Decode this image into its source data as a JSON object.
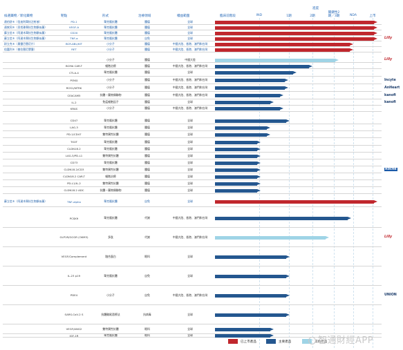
{
  "header": {
    "col_name": "候選藥物／新化藥物",
    "col_target": "靶點",
    "col_modality": "形式",
    "col_area": "治療領域",
    "col_territory": "權益範圍",
    "col_stage": "臨床前階段",
    "col_status": "進度",
    "stages": [
      "IND",
      "1期",
      "2期",
      "關鍵性2期／3期",
      "NDA",
      "上市"
    ]
  },
  "legend": {
    "commercial": "已上市產品",
    "key_program": "主要產品",
    "other_program": "其他產品"
  },
  "colors": {
    "red": "#c0272d",
    "navy": "#24578f",
    "light": "#9fd4e6",
    "accent": "#2a6bb8"
  },
  "watermark": "智通財經APP",
  "rows": [
    {
      "name": "達伯舒®（信迪利單抗注射液）",
      "target": "PD-1",
      "modality": "單克隆抗體",
      "area": "腫瘤",
      "territory": "全球",
      "partner": true,
      "bar": "red",
      "progress": 1.0,
      "note": "",
      "logo": ""
    },
    {
      "name": "達攸同®（貝伐珠單抗生物類似藥）",
      "target": "VEGF-A",
      "modality": "單克隆抗體",
      "area": "腫瘤",
      "territory": "全球",
      "partner": true,
      "bar": "red",
      "progress": 1.0,
      "note": "",
      "logo": ""
    },
    {
      "name": "蘇立信®（阿達木單抗生物類似藥）",
      "target": "CD20",
      "modality": "單克隆抗體",
      "area": "腫瘤",
      "territory": "全球",
      "partner": true,
      "bar": "red",
      "progress": 1.0,
      "note": "",
      "logo": ""
    },
    {
      "name": "蘇立信®（阿達木單抗生物類似藥）",
      "target": "TNF-α",
      "modality": "單克隆抗體",
      "area": "自免",
      "territory": "全球",
      "partner": true,
      "bar": "red",
      "progress": 1.0,
      "note": "",
      "logo": "Lilly"
    },
    {
      "name": "耐立克®（奧雷巴替尼片）",
      "target": "BCR-ABL/KIT",
      "modality": "小分子",
      "area": "腫瘤",
      "territory": "中國大陸、香港、澳門和台灣",
      "partner": true,
      "bar": "red",
      "progress": 0.85,
      "note": "",
      "logo": ""
    },
    {
      "name": "倍嘉利®（普拉替尼膠囊）",
      "target": "RET",
      "modality": "小分子",
      "area": "腫瘤",
      "territory": "中國大陸、香港、澳門和台灣",
      "partner": true,
      "bar": "red",
      "progress": 0.85,
      "note": "",
      "logo": ""
    },
    {
      "name": "",
      "target": "",
      "modality": "小分子",
      "area": "腫瘤",
      "territory": "中國大陸",
      "partner": false,
      "bar": "light",
      "progress": 0.76,
      "note": "",
      "logo": "Lilly"
    },
    {
      "name": "",
      "target": "BCMA CAR-T",
      "modality": "細胞治療",
      "area": "腫瘤",
      "territory": "中國大陸、香港、澳門和台灣",
      "partner": false,
      "bar": "navy",
      "progress": 0.6,
      "note": "",
      "logo": ""
    },
    {
      "name": "",
      "target": "CTLA-4",
      "modality": "單克隆抗體",
      "area": "腫瘤",
      "territory": "全球",
      "partner": false,
      "bar": "navy",
      "progress": 0.5,
      "note": "",
      "logo": ""
    },
    {
      "name": "",
      "target": "PI3Kδ",
      "modality": "小分子",
      "area": "腫瘤",
      "territory": "中國大陸、香港、澳門和台灣",
      "partner": false,
      "bar": "navy",
      "progress": 0.45,
      "note": "",
      "logo": "Incyte"
    },
    {
      "name": "",
      "target": "ROS1/NTRK",
      "modality": "小分子",
      "area": "腫瘤",
      "territory": "中國大陸、香港、澳門和台灣",
      "partner": false,
      "bar": "navy",
      "progress": 0.45,
      "note": "",
      "logo": "AnHeart"
    },
    {
      "name": "",
      "target": "CEACAM5",
      "modality": "抗體－藥物偶聯物",
      "area": "腫瘤",
      "territory": "中國大陸、香港、澳門和台灣",
      "partner": false,
      "bar": "navy",
      "progress": 0.42,
      "note": "",
      "logo": "kanofi"
    },
    {
      "name": "",
      "target": "IL-2",
      "modality": "免疫細胞因子",
      "area": "腫瘤",
      "territory": "全球",
      "partner": false,
      "bar": "navy",
      "progress": 0.36,
      "note": "",
      "logo": "kanofi"
    },
    {
      "name": "",
      "target": "KRAS",
      "modality": "小分子",
      "area": "腫瘤",
      "territory": "中國大陸、香港、澳門和台灣",
      "partner": false,
      "bar": "navy",
      "progress": 0.42,
      "note": "",
      "logo": ""
    },
    {
      "name": "",
      "target": "CD47",
      "modality": "單克隆抗體",
      "area": "腫瘤",
      "territory": "全球",
      "partner": false,
      "bar": "navy",
      "progress": 0.46,
      "note": "",
      "logo": ""
    },
    {
      "name": "",
      "target": "LAG-3",
      "modality": "單克隆抗體",
      "area": "腫瘤",
      "territory": "全球",
      "partner": false,
      "bar": "navy",
      "progress": 0.34,
      "note": "",
      "logo": ""
    },
    {
      "name": "",
      "target": "PD-1/CD47",
      "modality": "雙特異性抗體",
      "area": "腫瘤",
      "territory": "全球",
      "partner": false,
      "bar": "navy",
      "progress": 0.34,
      "note": "",
      "logo": ""
    },
    {
      "name": "",
      "target": "TIGIT",
      "modality": "單克隆抗體",
      "area": "腫瘤",
      "territory": "全球",
      "partner": false,
      "bar": "navy",
      "progress": 0.28,
      "note": "",
      "logo": ""
    },
    {
      "name": "",
      "target": "CLDN18.2",
      "modality": "單克隆抗體",
      "area": "腫瘤",
      "territory": "全球",
      "partner": false,
      "bar": "navy",
      "progress": 0.28,
      "note": "",
      "logo": ""
    },
    {
      "name": "",
      "target": "LAG-3/PD-L1",
      "modality": "雙特異性抗體",
      "area": "腫瘤",
      "territory": "全球",
      "partner": false,
      "bar": "navy",
      "progress": 0.28,
      "note": "",
      "logo": ""
    },
    {
      "name": "",
      "target": "CD73",
      "modality": "單克隆抗體",
      "area": "腫瘤",
      "territory": "全球",
      "partner": false,
      "bar": "navy",
      "progress": 0.28,
      "note": "",
      "logo": ""
    },
    {
      "name": "",
      "target": "CLDN18.2/CD3",
      "modality": "雙特異性抗體",
      "area": "腫瘤",
      "territory": "全球",
      "partner": false,
      "bar": "navy",
      "progress": 0.28,
      "note": "",
      "logo": "Roche"
    },
    {
      "name": "",
      "target": "CLDN18.2 CAR-T",
      "modality": "細胞治療",
      "area": "腫瘤",
      "territory": "全球",
      "partner": false,
      "bar": "navy",
      "progress": 0.28,
      "note": "",
      "logo": ""
    },
    {
      "name": "",
      "target": "PD-L1/IL-2",
      "modality": "雙特異性抗體",
      "area": "腫瘤",
      "territory": "全球",
      "partner": false,
      "bar": "navy",
      "progress": 0.28,
      "note": "",
      "logo": ""
    },
    {
      "name": "",
      "target": "CLDN18.2 ADC",
      "modality": "抗體－藥物偶聯物",
      "area": "腫瘤",
      "territory": "全球",
      "partner": false,
      "bar": "navy",
      "progress": 0.28,
      "note": "",
      "logo": ""
    },
    {
      "name": "蘇立信®（阿達木單抗生物類似藥）",
      "target": "TNF-alpha",
      "modality": "單克隆抗體",
      "area": "自免",
      "territory": "全球",
      "partner": true,
      "bar": "red",
      "progress": 1.0,
      "note": "",
      "logo": ""
    },
    {
      "name": "",
      "target": "PCSK9",
      "modality": "單克隆抗體",
      "area": "代謝",
      "territory": "中國大陸、香港、澳門和台灣",
      "partner": false,
      "bar": "navy",
      "progress": 0.84,
      "note": "",
      "logo": ""
    },
    {
      "name": "",
      "target": "GLP1R/GCGR (OXM3)",
      "modality": "多肽",
      "area": "代謝",
      "territory": "中國大陸、香港、澳門和台灣",
      "partner": false,
      "bar": "light",
      "progress": 0.7,
      "note": "",
      "logo": "Lilly"
    },
    {
      "name": "",
      "target": "VEGF/Complement",
      "modality": "融合蛋白",
      "area": "眼科",
      "territory": "全球",
      "partner": false,
      "bar": "navy",
      "progress": 0.46,
      "note": "",
      "logo": ""
    },
    {
      "name": "",
      "target": "IL-23 p19",
      "modality": "單克隆抗體",
      "area": "自免",
      "territory": "全球",
      "partner": false,
      "bar": "navy",
      "progress": 0.46,
      "note": "",
      "logo": ""
    },
    {
      "name": "",
      "target": "PDE4",
      "modality": "小分子",
      "area": "自免",
      "territory": "中國大陸、香港、澳門和台灣",
      "partner": false,
      "bar": "navy",
      "progress": 0.46,
      "note": "",
      "logo": "UNION"
    },
    {
      "name": "",
      "target": "SARS-CoV-2 S",
      "modality": "抗體雞尾酒療法",
      "area": "抗病毒",
      "territory": "全球",
      "partner": false,
      "bar": "navy",
      "progress": 0.46,
      "note": "",
      "logo": ""
    },
    {
      "name": "",
      "target": "VEGF/ANG2",
      "modality": "雙特異性抗體",
      "area": "眼科",
      "territory": "全球",
      "partner": false,
      "bar": "navy",
      "progress": 0.36,
      "note": "",
      "logo": ""
    },
    {
      "name": "",
      "target": "IGF-1R",
      "modality": "單克隆抗體",
      "area": "眼科",
      "territory": "全球",
      "partner": false,
      "bar": "navy",
      "progress": 0.36,
      "note": "",
      "logo": ""
    }
  ]
}
